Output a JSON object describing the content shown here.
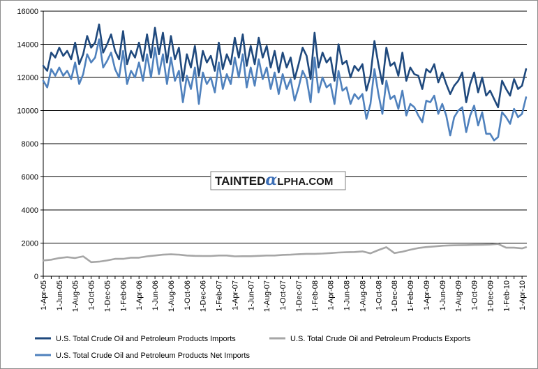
{
  "chart_data": {
    "type": "line",
    "title": "",
    "xlabel": "",
    "ylabel": "",
    "ylim": [
      0,
      16000
    ],
    "yticks": [
      0,
      2000,
      4000,
      6000,
      8000,
      10000,
      12000,
      14000,
      16000
    ],
    "ytick_labels": [
      "0",
      "2000",
      "4000",
      "6000",
      "8000",
      "10000",
      "12000",
      "14000",
      "16000"
    ],
    "grid": "horizontal",
    "legend_position": "bottom",
    "x_tick_labels": [
      "1-Apr-05",
      "1-Jun-05",
      "1-Aug-05",
      "1-Oct-05",
      "1-Dec-05",
      "1-Feb-06",
      "1-Apr-06",
      "1-Jun-06",
      "1-Aug-06",
      "1-Oct-06",
      "1-Dec-06",
      "1-Feb-07",
      "1-Apr-07",
      "1-Jun-07",
      "1-Aug-07",
      "1-Oct-07",
      "1-Dec-07",
      "1-Feb-08",
      "1-Apr-08",
      "1-Jun-08",
      "1-Aug-08",
      "1-Oct-08",
      "1-Dec-08",
      "1-Feb-09",
      "1-Apr-09",
      "1-Jun-09",
      "1-Aug-09",
      "1-Oct-09",
      "1-Dec-09",
      "1-Feb-10",
      "1-Apr-10"
    ],
    "x_tick_months": [
      0,
      2,
      4,
      6,
      8,
      10,
      12,
      14,
      16,
      18,
      20,
      22,
      24,
      26,
      28,
      30,
      32,
      34,
      36,
      38,
      40,
      42,
      44,
      46,
      48,
      50,
      52,
      54,
      56,
      58,
      60
    ],
    "x_range_months": [
      0,
      60.6
    ],
    "series": [
      {
        "name": "U.S. Total  Crude Oil and Petroleum Products Imports",
        "color": "#1f497d",
        "x_months": [
          0,
          0.5,
          1,
          1.5,
          2,
          2.5,
          3,
          3.5,
          4,
          4.5,
          5,
          5.5,
          6,
          6.5,
          7,
          7.5,
          8,
          8.5,
          9,
          9.5,
          10,
          10.5,
          11,
          11.5,
          12,
          12.5,
          13,
          13.5,
          14,
          14.5,
          15,
          15.5,
          16,
          16.5,
          17,
          17.5,
          18,
          18.5,
          19,
          19.5,
          20,
          20.5,
          21,
          21.5,
          22,
          22.5,
          23,
          23.5,
          24,
          24.5,
          25,
          25.5,
          26,
          26.5,
          27,
          27.5,
          28,
          28.5,
          29,
          29.5,
          30,
          30.5,
          31,
          31.5,
          32,
          32.5,
          33,
          33.5,
          34,
          34.5,
          35,
          35.5,
          36,
          36.5,
          37,
          37.5,
          38,
          38.5,
          39,
          39.5,
          40,
          40.5,
          41,
          41.5,
          42,
          42.5,
          43,
          43.5,
          44,
          44.5,
          45,
          45.5,
          46,
          46.5,
          47,
          47.5,
          48,
          48.5,
          49,
          49.5,
          50,
          50.5,
          51,
          51.5,
          52,
          52.5,
          53,
          53.5,
          54,
          54.5,
          55,
          55.5,
          56,
          56.5,
          57,
          57.5,
          58,
          58.5,
          59,
          59.5,
          60,
          60.5
        ],
        "values": [
          12700,
          12400,
          13500,
          13200,
          13800,
          13300,
          13600,
          13100,
          14100,
          12800,
          13400,
          14500,
          13800,
          14100,
          15200,
          13500,
          14000,
          14600,
          13600,
          13100,
          14800,
          12800,
          13600,
          13200,
          14100,
          13000,
          14600,
          13200,
          15000,
          13400,
          14700,
          12900,
          14500,
          13100,
          13800,
          11800,
          13400,
          12600,
          13900,
          12100,
          13600,
          12900,
          13300,
          12400,
          14100,
          12500,
          13400,
          12800,
          14400,
          13200,
          14600,
          12700,
          13900,
          12800,
          14400,
          13200,
          13900,
          12600,
          13600,
          12300,
          13500,
          12600,
          13200,
          11900,
          12800,
          13800,
          13300,
          11900,
          14700,
          12600,
          13500,
          12900,
          13200,
          11800,
          14000,
          12800,
          13000,
          12000,
          12700,
          12400,
          12800,
          11200,
          12100,
          14200,
          12800,
          11600,
          13800,
          12700,
          12900,
          12100,
          13500,
          11800,
          12600,
          12200,
          12100,
          11300,
          12500,
          12300,
          12800,
          11700,
          12300,
          11600,
          11000,
          11500,
          11800,
          12300,
          10500,
          11600,
          12300,
          11100,
          12000,
          10900,
          11200,
          10700,
          10200,
          11800,
          11300,
          10900,
          11900,
          11300,
          11500,
          12500
        ]
      },
      {
        "name": "U.S. Total  Crude Oil and Petroleum Products Exports",
        "color": "#a6a6a6",
        "x_months": [
          0,
          1,
          2,
          3,
          4,
          5,
          6,
          7,
          8,
          9,
          10,
          11,
          12,
          13,
          14,
          15,
          16,
          17,
          18,
          19,
          20,
          21,
          22,
          23,
          24,
          25,
          26,
          27,
          28,
          29,
          30,
          31,
          32,
          33,
          34,
          35,
          36,
          37,
          38,
          39,
          40,
          41,
          42,
          43,
          44,
          45,
          46,
          47,
          48,
          49,
          50,
          51,
          52,
          53,
          54,
          55,
          56,
          57,
          58,
          59,
          60,
          60.5
        ],
        "values": [
          950,
          1000,
          1100,
          1150,
          1100,
          1200,
          850,
          880,
          950,
          1050,
          1050,
          1120,
          1120,
          1200,
          1250,
          1300,
          1320,
          1300,
          1250,
          1230,
          1220,
          1220,
          1250,
          1250,
          1200,
          1210,
          1210,
          1230,
          1250,
          1250,
          1290,
          1300,
          1330,
          1350,
          1350,
          1370,
          1400,
          1430,
          1450,
          1460,
          1500,
          1380,
          1580,
          1750,
          1400,
          1480,
          1600,
          1700,
          1760,
          1800,
          1840,
          1860,
          1870,
          1880,
          1890,
          1900,
          1910,
          1950,
          1720,
          1720,
          1680,
          1750
        ]
      },
      {
        "name": "U.S. Total  Crude Oil and Petroleum Products Net Imports",
        "color": "#4f81bd",
        "x_months": [
          0,
          0.5,
          1,
          1.5,
          2,
          2.5,
          3,
          3.5,
          4,
          4.5,
          5,
          5.5,
          6,
          6.5,
          7,
          7.5,
          8,
          8.5,
          9,
          9.5,
          10,
          10.5,
          11,
          11.5,
          12,
          12.5,
          13,
          13.5,
          14,
          14.5,
          15,
          15.5,
          16,
          16.5,
          17,
          17.5,
          18,
          18.5,
          19,
          19.5,
          20,
          20.5,
          21,
          21.5,
          22,
          22.5,
          23,
          23.5,
          24,
          24.5,
          25,
          25.5,
          26,
          26.5,
          27,
          27.5,
          28,
          28.5,
          29,
          29.5,
          30,
          30.5,
          31,
          31.5,
          32,
          32.5,
          33,
          33.5,
          34,
          34.5,
          35,
          35.5,
          36,
          36.5,
          37,
          37.5,
          38,
          38.5,
          39,
          39.5,
          40,
          40.5,
          41,
          41.5,
          42,
          42.5,
          43,
          43.5,
          44,
          44.5,
          45,
          45.5,
          46,
          46.5,
          47,
          47.5,
          48,
          48.5,
          49,
          49.5,
          50,
          50.5,
          51,
          51.5,
          52,
          52.5,
          53,
          53.5,
          54,
          54.5,
          55,
          55.5,
          56,
          56.5,
          57,
          57.5,
          58,
          58.5,
          59,
          59.5,
          60,
          60.5
        ],
        "values": [
          11800,
          11400,
          12500,
          12100,
          12600,
          12100,
          12400,
          11900,
          12900,
          11600,
          12200,
          13400,
          12900,
          13200,
          14300,
          12600,
          13000,
          13500,
          12500,
          12000,
          13600,
          11600,
          12400,
          12000,
          12900,
          11800,
          13400,
          12000,
          13800,
          12200,
          13400,
          11600,
          13200,
          11800,
          12400,
          10500,
          12100,
          11300,
          12600,
          10400,
          12300,
          11600,
          12000,
          11100,
          12900,
          11300,
          12200,
          11600,
          13200,
          12000,
          13400,
          11400,
          12600,
          11500,
          13100,
          11900,
          12600,
          11300,
          12300,
          11000,
          12200,
          11300,
          11900,
          10600,
          11400,
          12400,
          11900,
          10500,
          13200,
          11100,
          12000,
          11400,
          11600,
          10400,
          12400,
          11200,
          11400,
          10400,
          11000,
          10700,
          11000,
          9500,
          10400,
          12500,
          11000,
          9800,
          11800,
          10700,
          10900,
          10100,
          11200,
          9700,
          10400,
          10200,
          9700,
          9300,
          10600,
          10500,
          10900,
          9800,
          10400,
          9700,
          8500,
          9600,
          10000,
          10200,
          8700,
          9700,
          10300,
          9100,
          9900,
          8600,
          8600,
          8200,
          8400,
          9900,
          9600,
          9200,
          10100,
          9600,
          9800,
          10800
        ]
      }
    ]
  },
  "watermark": {
    "part1": "TAINTED",
    "part2": "α",
    "part3": "LPHA.COM"
  }
}
